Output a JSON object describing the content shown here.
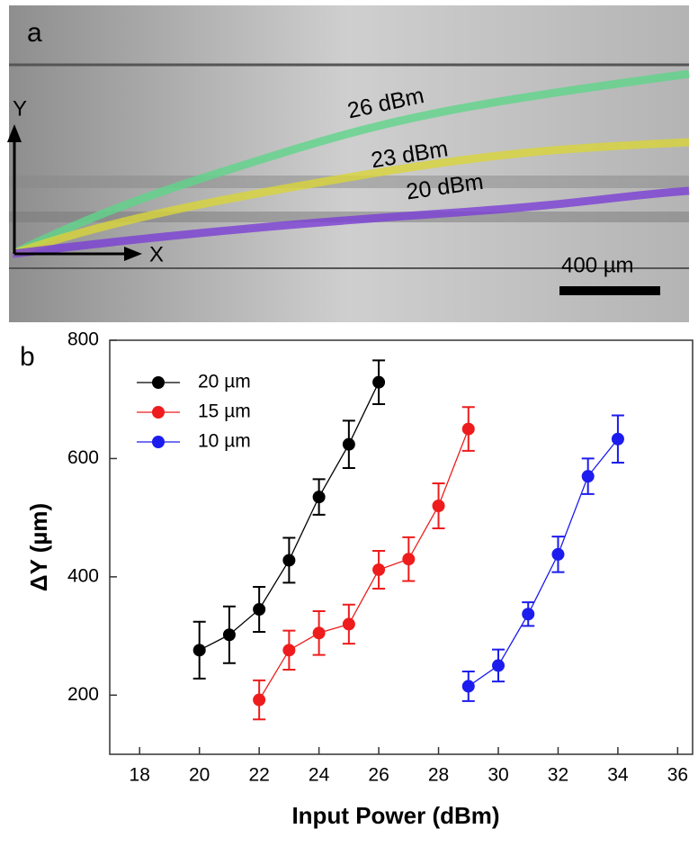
{
  "panel_a": {
    "label": "a",
    "annotations": [
      "26 dBm",
      "23 dBm",
      "20 dBm"
    ],
    "axis_y": "Y",
    "axis_x": "X",
    "scale_bar": "400 µm"
  },
  "chart_data": {
    "type": "line",
    "panel_label": "b",
    "xlabel": "Input Power (dBm)",
    "ylabel": "ΔY (µm)",
    "xlim": [
      17,
      36.5
    ],
    "ylim": [
      100,
      800
    ],
    "xticks": [
      18,
      20,
      22,
      24,
      26,
      28,
      30,
      32,
      34,
      36
    ],
    "yticks": [
      200,
      400,
      600,
      800
    ],
    "legend": "upper left",
    "series": [
      {
        "name": "20 µm",
        "color": "#000000",
        "x": [
          20,
          21,
          22,
          23,
          24,
          25,
          26
        ],
        "values": [
          276,
          302,
          345,
          428,
          535,
          624,
          729
        ],
        "errors": [
          48,
          48,
          38,
          38,
          30,
          40,
          37
        ]
      },
      {
        "name": "15 µm",
        "color": "#ee1c1c",
        "x": [
          22,
          23,
          24,
          25,
          26,
          27,
          28,
          29
        ],
        "values": [
          192,
          276,
          305,
          320,
          412,
          430,
          520,
          650
        ],
        "errors": [
          33,
          33,
          37,
          33,
          32,
          37,
          38,
          37
        ]
      },
      {
        "name": "10 µm",
        "color": "#1c1cee",
        "x": [
          29,
          30,
          31,
          32,
          33,
          34
        ],
        "values": [
          215,
          250,
          337,
          438,
          570,
          633
        ],
        "errors": [
          25,
          27,
          20,
          30,
          30,
          40
        ]
      }
    ]
  }
}
